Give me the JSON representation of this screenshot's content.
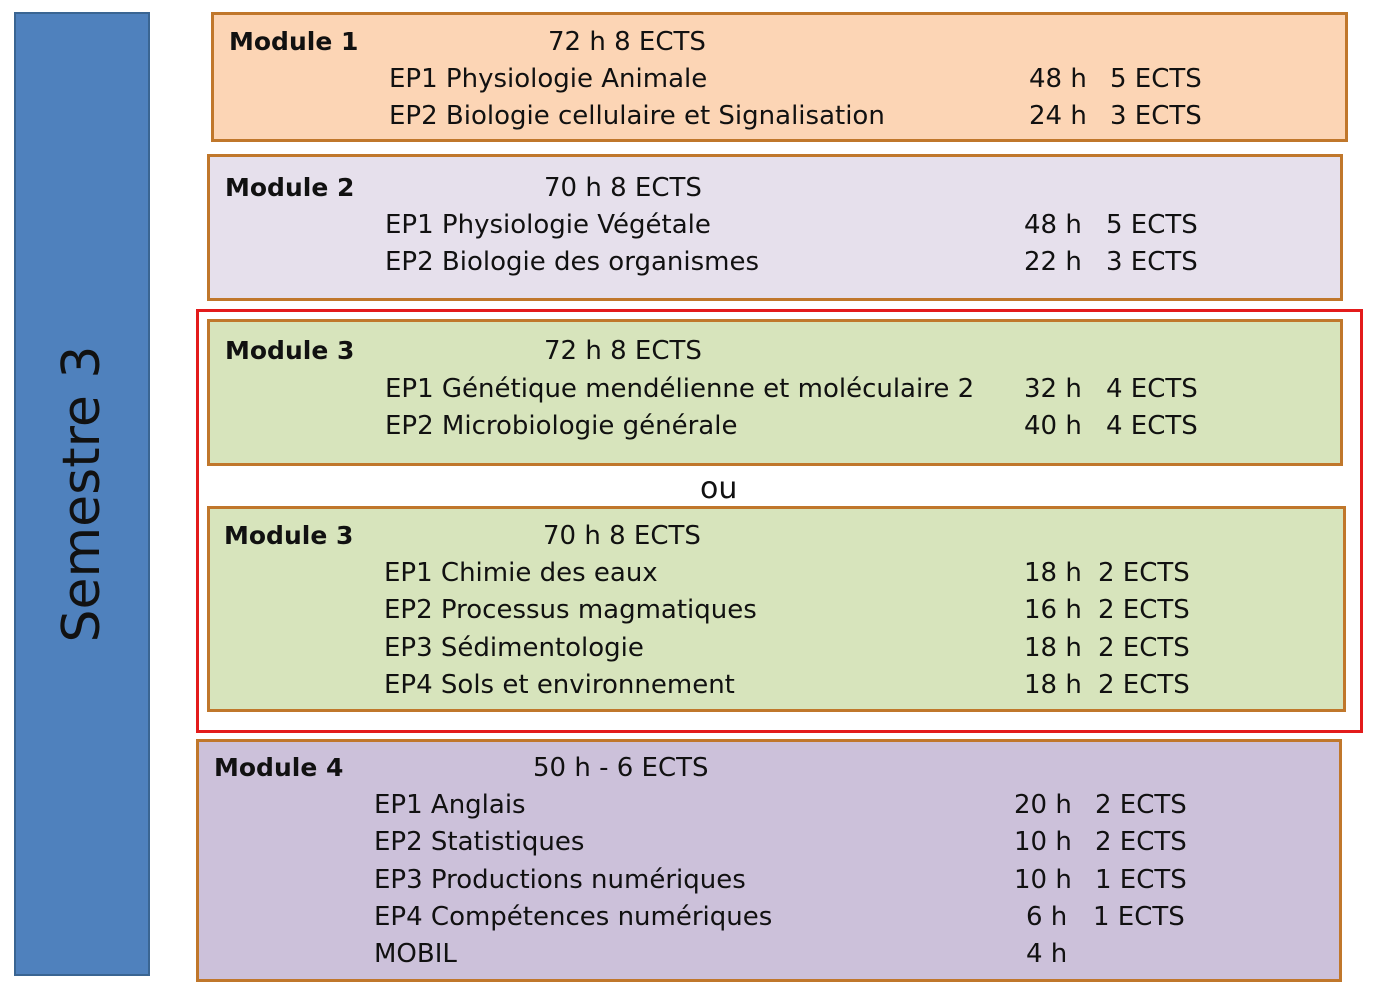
{
  "semester": "Semestre 3",
  "separator": "ou",
  "modules": [
    {
      "title": "Module 1",
      "summary": "72 h    8 ECTS",
      "items": [
        {
          "name": "EP1 Physiologie  Animale",
          "hours": "48 h",
          "ects": "5 ECTS"
        },
        {
          "name": "EP2 Biologie cellulaire et Signalisation",
          "hours": "24 h",
          "ects": "3 ECTS"
        }
      ]
    },
    {
      "title": "Module 2",
      "summary": "70 h    8 ECTS",
      "items": [
        {
          "name": "EP1 Physiologie  Végétale",
          "hours": "48 h",
          "ects": "5 ECTS"
        },
        {
          "name": "EP2 Biologie des organismes",
          "hours": "22 h",
          "ects": "3 ECTS"
        }
      ]
    },
    {
      "title": "Module 3",
      "summary": "72 h    8 ECTS",
      "items": [
        {
          "name": "EP1 Génétique  mendélienne  et moléculaire 2",
          "hours": "32 h",
          "ects": "4 ECTS"
        },
        {
          "name": "EP2 Microbiologie  générale",
          "hours": "40 h",
          "ects": "4 ECTS"
        }
      ]
    },
    {
      "title": "Module 3",
      "summary": "70 h   8 ECTS",
      "items": [
        {
          "name": "EP1 Chimie des eaux",
          "hours": "18 h",
          "ects": "2 ECTS"
        },
        {
          "name": "EP2 Processus  magmatiques",
          "hours": "16 h",
          "ects": "2 ECTS"
        },
        {
          "name": "EP3 Sédimentologie",
          "hours": "18 h",
          "ects": "2 ECTS"
        },
        {
          "name": "EP4 Sols et environnement",
          "hours": "18 h",
          "ects": "2 ECTS"
        }
      ]
    },
    {
      "title": "Module 4",
      "summary": "50 h -  6 ECTS",
      "items": [
        {
          "name": "EP1 Anglais",
          "hours": "20 h",
          "ects": "2 ECTS"
        },
        {
          "name": "EP2 Statistiques",
          "hours": "10 h",
          "ects": "2 ECTS"
        },
        {
          "name": "EP3 Productions  numériques",
          "hours": "10 h",
          "ects": "1 ECTS"
        },
        {
          "name": "EP4 Compétences  numériques",
          "hours": " 6 h",
          "ects": "1 ECTS"
        },
        {
          "name": "MOBIL",
          "hours": " 4 h",
          "ects": ""
        }
      ]
    }
  ],
  "colors": {
    "semester_bar": "#4f81bd",
    "module1_bg": "#fcd5b5",
    "module2_bg": "#e6e0ec",
    "module3_bg": "#d7e4bc",
    "module4_bg": "#ccc1da",
    "module_border": "#c0772b",
    "highlight_border": "#e31b1b"
  }
}
